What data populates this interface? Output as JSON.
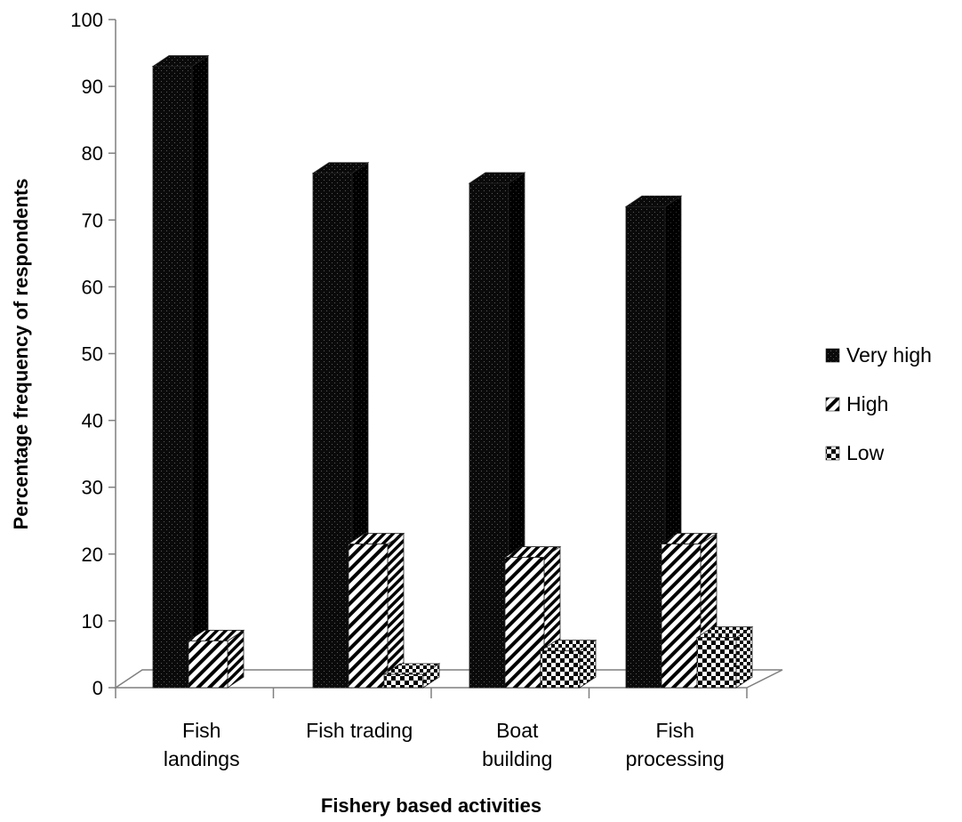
{
  "chart_data": {
    "type": "bar",
    "title": "",
    "xlabel": "Fishery based activities",
    "ylabel": "Percentage frequency of respondents",
    "ylim": [
      0,
      100
    ],
    "yticks": [
      0,
      10,
      20,
      30,
      40,
      50,
      60,
      70,
      80,
      90,
      100
    ],
    "categories": [
      [
        "Fish",
        "landings"
      ],
      [
        "Fish trading"
      ],
      [
        "Boat",
        "building"
      ],
      [
        "Fish",
        "processing"
      ]
    ],
    "series": [
      {
        "name": "Very high",
        "values": [
          93,
          77,
          75.5,
          72
        ],
        "pattern": "dots",
        "color": "#0a0a0a"
      },
      {
        "name": "High",
        "values": [
          7,
          21.5,
          19.5,
          21.5
        ],
        "pattern": "diagonal-stripes",
        "color": "#000000"
      },
      {
        "name": "Low",
        "values": [
          0,
          2,
          5.5,
          7.5
        ],
        "pattern": "checker",
        "color": "#000000"
      }
    ],
    "legend_position": "right",
    "grid": false,
    "style": "3d-clustered-column"
  }
}
